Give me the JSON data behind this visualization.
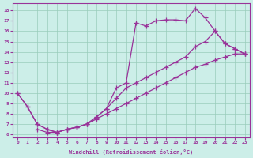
{
  "bg_color": "#cceee8",
  "grid_color": "#99ccbb",
  "line_color": "#993399",
  "xlabel": "Windchill (Refroidissement éolien,°C)",
  "xlim": [
    -0.5,
    23.5
  ],
  "ylim": [
    5.7,
    18.7
  ],
  "xticks": [
    0,
    1,
    2,
    3,
    4,
    5,
    6,
    7,
    8,
    9,
    10,
    11,
    12,
    13,
    14,
    15,
    16,
    17,
    18,
    19,
    20,
    21,
    22,
    23
  ],
  "yticks": [
    6,
    7,
    8,
    9,
    10,
    11,
    12,
    13,
    14,
    15,
    16,
    17,
    18
  ],
  "curves": [
    {
      "x": [
        0,
        1,
        2,
        3,
        4,
        5,
        6,
        7,
        8,
        9,
        10,
        11,
        12,
        13,
        14,
        15,
        16,
        17,
        18,
        19,
        20,
        21,
        22,
        23
      ],
      "y": [
        10.0,
        8.7,
        7.0,
        6.5,
        6.2,
        6.5,
        6.7,
        7.0,
        7.7,
        8.5,
        10.5,
        11.0,
        16.8,
        16.5,
        17.0,
        17.1,
        17.1,
        17.0,
        18.2,
        17.3,
        16.0,
        14.8,
        14.3,
        13.8
      ]
    },
    {
      "x": [
        0,
        1,
        2,
        3,
        4,
        5,
        6,
        7,
        8,
        9,
        10,
        11,
        12,
        13,
        14,
        15,
        16,
        17,
        18,
        19,
        20,
        21,
        22,
        23
      ],
      "y": [
        10.0,
        8.7,
        7.0,
        6.5,
        6.2,
        6.5,
        6.7,
        7.0,
        7.7,
        8.5,
        9.5,
        10.5,
        11.0,
        11.5,
        12.0,
        12.5,
        13.0,
        13.5,
        14.5,
        15.0,
        16.0,
        14.8,
        14.3,
        13.8
      ]
    },
    {
      "x": [
        2,
        3,
        4,
        5,
        6,
        7,
        8,
        9,
        10,
        11,
        12,
        13,
        14,
        15,
        16,
        17,
        18,
        19,
        20,
        21,
        22,
        23
      ],
      "y": [
        6.5,
        6.2,
        6.2,
        6.5,
        6.7,
        7.0,
        7.5,
        8.0,
        8.5,
        9.0,
        9.5,
        10.0,
        10.5,
        11.0,
        11.5,
        12.0,
        12.5,
        12.8,
        13.2,
        13.5,
        13.8,
        13.8
      ]
    }
  ]
}
